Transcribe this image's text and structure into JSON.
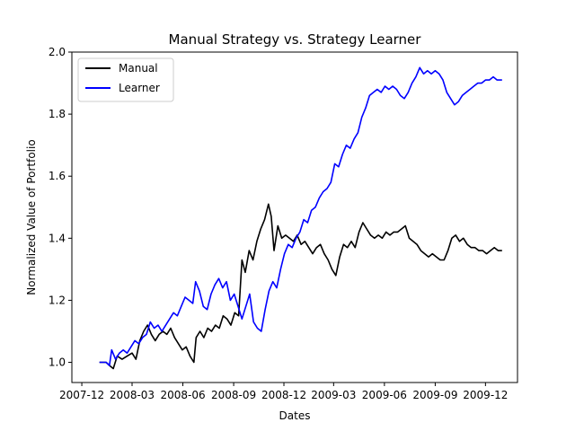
{
  "chart_data": {
    "type": "line",
    "title": "Manual Strategy vs. Strategy Learner",
    "xlabel": "Dates",
    "ylabel": "Normalized Value of Portfolio",
    "xlim": [
      "2007-11-13",
      "2010-01-28"
    ],
    "ylim": [
      0.935,
      2.0
    ],
    "yticks": [
      "1.0",
      "1.2",
      "1.4",
      "1.6",
      "1.8",
      "2.0"
    ],
    "xticks": [
      {
        "date": "2007-12-01",
        "label": "2007-12"
      },
      {
        "date": "2008-03-01",
        "label": "2008-03"
      },
      {
        "date": "2008-06-01",
        "label": "2008-06"
      },
      {
        "date": "2008-09-01",
        "label": "2008-09"
      },
      {
        "date": "2008-12-01",
        "label": "2008-12"
      },
      {
        "date": "2009-03-01",
        "label": "2009-03"
      },
      {
        "date": "2009-06-01",
        "label": "2009-06"
      },
      {
        "date": "2009-09-01",
        "label": "2009-09"
      },
      {
        "date": "2009-12-01",
        "label": "2009-12"
      }
    ],
    "legend": "top-left",
    "grid": false,
    "series": [
      {
        "name": "Manual",
        "color": "#000000",
        "points": [
          [
            "2008-01-02",
            1.0
          ],
          [
            "2008-01-14",
            1.0
          ],
          [
            "2008-01-20",
            0.99
          ],
          [
            "2008-01-27",
            0.98
          ],
          [
            "2008-02-03",
            1.02
          ],
          [
            "2008-02-12",
            1.01
          ],
          [
            "2008-02-21",
            1.02
          ],
          [
            "2008-03-01",
            1.03
          ],
          [
            "2008-03-08",
            1.01
          ],
          [
            "2008-03-15",
            1.07
          ],
          [
            "2008-03-22",
            1.1
          ],
          [
            "2008-03-29",
            1.12
          ],
          [
            "2008-04-05",
            1.09
          ],
          [
            "2008-04-12",
            1.07
          ],
          [
            "2008-04-19",
            1.09
          ],
          [
            "2008-04-26",
            1.1
          ],
          [
            "2008-05-03",
            1.09
          ],
          [
            "2008-05-10",
            1.11
          ],
          [
            "2008-05-17",
            1.08
          ],
          [
            "2008-05-24",
            1.06
          ],
          [
            "2008-05-31",
            1.04
          ],
          [
            "2008-06-07",
            1.05
          ],
          [
            "2008-06-14",
            1.02
          ],
          [
            "2008-06-21",
            1.0
          ],
          [
            "2008-06-25",
            1.08
          ],
          [
            "2008-07-02",
            1.1
          ],
          [
            "2008-07-09",
            1.08
          ],
          [
            "2008-07-16",
            1.11
          ],
          [
            "2008-07-23",
            1.1
          ],
          [
            "2008-07-30",
            1.12
          ],
          [
            "2008-08-06",
            1.11
          ],
          [
            "2008-08-13",
            1.15
          ],
          [
            "2008-08-20",
            1.14
          ],
          [
            "2008-08-27",
            1.12
          ],
          [
            "2008-09-03",
            1.16
          ],
          [
            "2008-09-10",
            1.15
          ],
          [
            "2008-09-16",
            1.33
          ],
          [
            "2008-09-22",
            1.29
          ],
          [
            "2008-09-29",
            1.36
          ],
          [
            "2008-10-06",
            1.33
          ],
          [
            "2008-10-13",
            1.39
          ],
          [
            "2008-10-20",
            1.43
          ],
          [
            "2008-10-27",
            1.46
          ],
          [
            "2008-11-03",
            1.51
          ],
          [
            "2008-11-08",
            1.47
          ],
          [
            "2008-11-13",
            1.36
          ],
          [
            "2008-11-20",
            1.44
          ],
          [
            "2008-11-27",
            1.4
          ],
          [
            "2008-12-04",
            1.41
          ],
          [
            "2008-12-11",
            1.4
          ],
          [
            "2008-12-18",
            1.39
          ],
          [
            "2008-12-25",
            1.41
          ],
          [
            "2009-01-01",
            1.38
          ],
          [
            "2009-01-08",
            1.39
          ],
          [
            "2009-01-15",
            1.37
          ],
          [
            "2009-01-22",
            1.35
          ],
          [
            "2009-01-29",
            1.37
          ],
          [
            "2009-02-05",
            1.38
          ],
          [
            "2009-02-12",
            1.35
          ],
          [
            "2009-02-19",
            1.33
          ],
          [
            "2009-02-26",
            1.3
          ],
          [
            "2009-03-05",
            1.28
          ],
          [
            "2009-03-12",
            1.34
          ],
          [
            "2009-03-19",
            1.38
          ],
          [
            "2009-03-26",
            1.37
          ],
          [
            "2009-04-02",
            1.39
          ],
          [
            "2009-04-09",
            1.37
          ],
          [
            "2009-04-16",
            1.42
          ],
          [
            "2009-04-23",
            1.45
          ],
          [
            "2009-04-30",
            1.43
          ],
          [
            "2009-05-07",
            1.41
          ],
          [
            "2009-05-14",
            1.4
          ],
          [
            "2009-05-21",
            1.41
          ],
          [
            "2009-05-28",
            1.4
          ],
          [
            "2009-06-04",
            1.42
          ],
          [
            "2009-06-11",
            1.41
          ],
          [
            "2009-06-18",
            1.42
          ],
          [
            "2009-06-25",
            1.42
          ],
          [
            "2009-07-02",
            1.43
          ],
          [
            "2009-07-09",
            1.44
          ],
          [
            "2009-07-16",
            1.4
          ],
          [
            "2009-07-23",
            1.39
          ],
          [
            "2009-07-30",
            1.38
          ],
          [
            "2009-08-06",
            1.36
          ],
          [
            "2009-08-13",
            1.35
          ],
          [
            "2009-08-20",
            1.34
          ],
          [
            "2009-08-27",
            1.35
          ],
          [
            "2009-09-03",
            1.34
          ],
          [
            "2009-09-10",
            1.33
          ],
          [
            "2009-09-17",
            1.33
          ],
          [
            "2009-09-24",
            1.36
          ],
          [
            "2009-10-01",
            1.4
          ],
          [
            "2009-10-08",
            1.41
          ],
          [
            "2009-10-15",
            1.39
          ],
          [
            "2009-10-22",
            1.4
          ],
          [
            "2009-10-29",
            1.38
          ],
          [
            "2009-11-05",
            1.37
          ],
          [
            "2009-11-12",
            1.37
          ],
          [
            "2009-11-19",
            1.36
          ],
          [
            "2009-11-26",
            1.36
          ],
          [
            "2009-12-03",
            1.35
          ],
          [
            "2009-12-10",
            1.36
          ],
          [
            "2009-12-17",
            1.37
          ],
          [
            "2009-12-24",
            1.36
          ],
          [
            "2009-12-31",
            1.36
          ]
        ]
      },
      {
        "name": "Learner",
        "color": "#0000ff",
        "points": [
          [
            "2008-01-02",
            1.0
          ],
          [
            "2008-01-14",
            1.0
          ],
          [
            "2008-01-20",
            0.99
          ],
          [
            "2008-01-24",
            1.04
          ],
          [
            "2008-01-31",
            1.01
          ],
          [
            "2008-02-07",
            1.03
          ],
          [
            "2008-02-14",
            1.04
          ],
          [
            "2008-02-21",
            1.03
          ],
          [
            "2008-02-28",
            1.05
          ],
          [
            "2008-03-06",
            1.07
          ],
          [
            "2008-03-13",
            1.06
          ],
          [
            "2008-03-20",
            1.08
          ],
          [
            "2008-03-27",
            1.09
          ],
          [
            "2008-04-03",
            1.13
          ],
          [
            "2008-04-10",
            1.11
          ],
          [
            "2008-04-17",
            1.12
          ],
          [
            "2008-04-24",
            1.1
          ],
          [
            "2008-05-01",
            1.12
          ],
          [
            "2008-05-08",
            1.14
          ],
          [
            "2008-05-15",
            1.16
          ],
          [
            "2008-05-22",
            1.15
          ],
          [
            "2008-05-29",
            1.18
          ],
          [
            "2008-06-05",
            1.21
          ],
          [
            "2008-06-12",
            1.2
          ],
          [
            "2008-06-19",
            1.19
          ],
          [
            "2008-06-24",
            1.26
          ],
          [
            "2008-07-01",
            1.23
          ],
          [
            "2008-07-08",
            1.18
          ],
          [
            "2008-07-15",
            1.17
          ],
          [
            "2008-07-22",
            1.22
          ],
          [
            "2008-07-29",
            1.25
          ],
          [
            "2008-08-05",
            1.27
          ],
          [
            "2008-08-12",
            1.24
          ],
          [
            "2008-08-19",
            1.26
          ],
          [
            "2008-08-26",
            1.2
          ],
          [
            "2008-09-02",
            1.22
          ],
          [
            "2008-09-09",
            1.18
          ],
          [
            "2008-09-16",
            1.14
          ],
          [
            "2008-09-23",
            1.18
          ],
          [
            "2008-09-30",
            1.22
          ],
          [
            "2008-10-07",
            1.13
          ],
          [
            "2008-10-14",
            1.11
          ],
          [
            "2008-10-21",
            1.1
          ],
          [
            "2008-10-28",
            1.17
          ],
          [
            "2008-11-04",
            1.23
          ],
          [
            "2008-11-11",
            1.26
          ],
          [
            "2008-11-18",
            1.24
          ],
          [
            "2008-11-25",
            1.3
          ],
          [
            "2008-12-02",
            1.35
          ],
          [
            "2008-12-09",
            1.38
          ],
          [
            "2008-12-16",
            1.37
          ],
          [
            "2008-12-23",
            1.4
          ],
          [
            "2008-12-30",
            1.42
          ],
          [
            "2009-01-06",
            1.46
          ],
          [
            "2009-01-13",
            1.45
          ],
          [
            "2009-01-20",
            1.49
          ],
          [
            "2009-01-27",
            1.5
          ],
          [
            "2009-02-03",
            1.53
          ],
          [
            "2009-02-10",
            1.55
          ],
          [
            "2009-02-17",
            1.56
          ],
          [
            "2009-02-24",
            1.58
          ],
          [
            "2009-03-03",
            1.64
          ],
          [
            "2009-03-10",
            1.63
          ],
          [
            "2009-03-17",
            1.67
          ],
          [
            "2009-03-24",
            1.7
          ],
          [
            "2009-03-31",
            1.69
          ],
          [
            "2009-04-07",
            1.72
          ],
          [
            "2009-04-14",
            1.74
          ],
          [
            "2009-04-21",
            1.79
          ],
          [
            "2009-04-28",
            1.82
          ],
          [
            "2009-05-05",
            1.86
          ],
          [
            "2009-05-12",
            1.87
          ],
          [
            "2009-05-19",
            1.88
          ],
          [
            "2009-05-26",
            1.87
          ],
          [
            "2009-06-02",
            1.89
          ],
          [
            "2009-06-09",
            1.88
          ],
          [
            "2009-06-16",
            1.89
          ],
          [
            "2009-06-23",
            1.88
          ],
          [
            "2009-06-30",
            1.86
          ],
          [
            "2009-07-07",
            1.85
          ],
          [
            "2009-07-14",
            1.87
          ],
          [
            "2009-07-21",
            1.9
          ],
          [
            "2009-07-28",
            1.92
          ],
          [
            "2009-08-04",
            1.95
          ],
          [
            "2009-08-11",
            1.93
          ],
          [
            "2009-08-18",
            1.94
          ],
          [
            "2009-08-25",
            1.93
          ],
          [
            "2009-09-01",
            1.94
          ],
          [
            "2009-09-08",
            1.93
          ],
          [
            "2009-09-15",
            1.91
          ],
          [
            "2009-09-22",
            1.87
          ],
          [
            "2009-09-29",
            1.85
          ],
          [
            "2009-10-06",
            1.83
          ],
          [
            "2009-10-13",
            1.84
          ],
          [
            "2009-10-20",
            1.86
          ],
          [
            "2009-10-27",
            1.87
          ],
          [
            "2009-11-03",
            1.88
          ],
          [
            "2009-11-10",
            1.89
          ],
          [
            "2009-11-17",
            1.9
          ],
          [
            "2009-11-24",
            1.9
          ],
          [
            "2009-12-01",
            1.91
          ],
          [
            "2009-12-08",
            1.91
          ],
          [
            "2009-12-15",
            1.92
          ],
          [
            "2009-12-22",
            1.91
          ],
          [
            "2009-12-31",
            1.91
          ]
        ]
      }
    ]
  }
}
